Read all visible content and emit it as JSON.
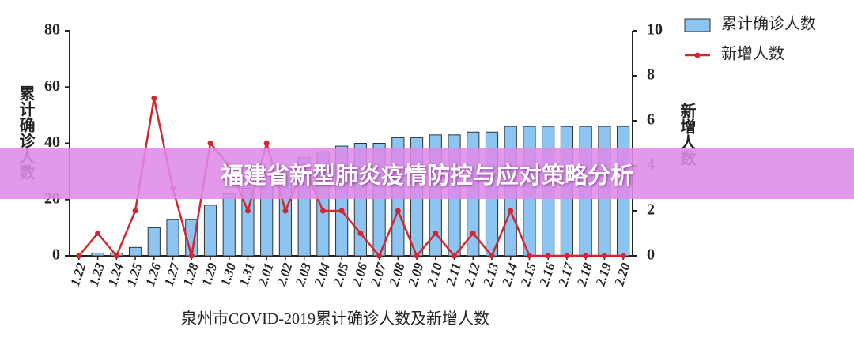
{
  "banner": {
    "text": "福建省新型肺炎疫情防控与应对策略分析"
  },
  "chart_data": {
    "type": "bar_line",
    "title": "泉州市COVID-2019累计确诊人数及新增人数",
    "ylabel": "累计确诊人数",
    "y2label": "新增人数",
    "categories": [
      "1.22",
      "1.23",
      "1.24",
      "1.25",
      "1.26",
      "1.27",
      "1.28",
      "1.29",
      "1.30",
      "1.31",
      "2.01",
      "2.02",
      "2.03",
      "2.04",
      "2.05",
      "2.06",
      "2.07",
      "2.08",
      "2.09",
      "2.10",
      "2.11",
      "2.12",
      "2.13",
      "2.14",
      "2.15",
      "2.16",
      "2.17",
      "2.18",
      "2.19",
      "2.20"
    ],
    "series": [
      {
        "name": "累计确诊人数",
        "type": "bar",
        "color": "#8cc4f2",
        "values": [
          0,
          1,
          1,
          3,
          10,
          13,
          13,
          18,
          22,
          24,
          29,
          31,
          35,
          37,
          39,
          40,
          40,
          42,
          42,
          43,
          43,
          44,
          44,
          46,
          46,
          46,
          46,
          46,
          46,
          46
        ]
      },
      {
        "name": "新增人数",
        "type": "line",
        "axis": "y2",
        "color": "#d0282e",
        "values": [
          0,
          1,
          0,
          2,
          7,
          3,
          0,
          5,
          4,
          2,
          5,
          2,
          4,
          2,
          2,
          1,
          0,
          2,
          0,
          1,
          0,
          1,
          0,
          2,
          0,
          0,
          0,
          0,
          0,
          0
        ]
      }
    ],
    "ylim": [
      0,
      80
    ],
    "yticks": [
      0,
      20,
      40,
      60,
      80
    ],
    "y2lim": [
      0,
      10
    ],
    "y2ticks": [
      0,
      2,
      4,
      6,
      8,
      10
    ],
    "legend": "top-right",
    "grid": false
  }
}
